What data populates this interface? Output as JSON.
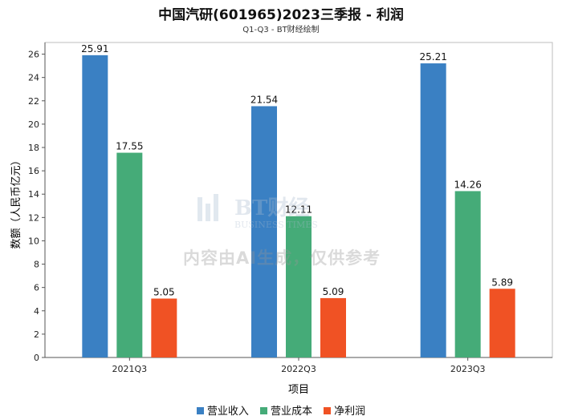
{
  "chart_data": {
    "type": "bar",
    "title": "中国汽研(601965)2023三季报 - 利润",
    "subtitle": "Q1-Q3 - BT财经绘制",
    "xlabel": "项目",
    "ylabel": "数额（人民币亿元）",
    "categories": [
      "2021Q3",
      "2022Q3",
      "2023Q3"
    ],
    "series": [
      {
        "name": "营业收入",
        "color": "#3a80c3",
        "values": [
          25.91,
          21.54,
          25.21
        ],
        "labels": [
          "25.91",
          "21.54",
          "25.21"
        ]
      },
      {
        "name": "营业成本",
        "color": "#45ab78",
        "values": [
          17.55,
          12.11,
          14.26
        ],
        "labels": [
          "17.55",
          "12.11",
          "14.26"
        ]
      },
      {
        "name": "净利润",
        "color": "#f05224",
        "values": [
          5.05,
          5.09,
          5.89
        ],
        "labels": [
          "5.05",
          "5.09",
          "5.89"
        ]
      }
    ],
    "ylim": [
      0,
      27
    ],
    "yticks": [
      0,
      2,
      4,
      6,
      8,
      10,
      12,
      14,
      16,
      18,
      20,
      22,
      24,
      26
    ],
    "grid": true,
    "legend_position": "bottom"
  },
  "watermark": {
    "logo_main": "BT财经",
    "logo_sub": "BUSINESS TIMES",
    "text": "内容由AI生成，仅供参考"
  }
}
